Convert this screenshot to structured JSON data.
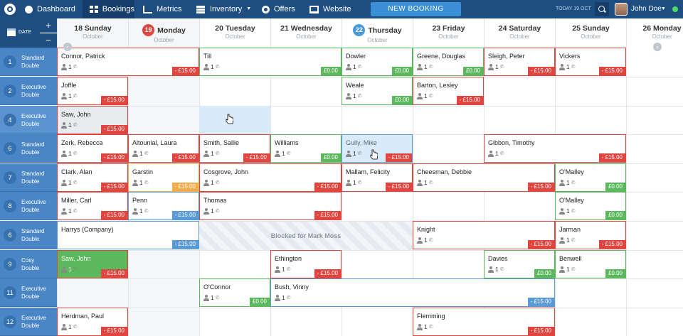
{
  "nav": {
    "items": [
      {
        "label": "Dashboard",
        "icon": "dashboard-icon"
      },
      {
        "label": "Bookings",
        "icon": "bookings-grid-icon",
        "active": true
      },
      {
        "label": "Metrics",
        "icon": "metrics-chart-icon"
      },
      {
        "label": "Inventory",
        "icon": "inventory-icon",
        "dropdown": true
      },
      {
        "label": "Offers",
        "icon": "offers-gear-icon"
      },
      {
        "label": "Website",
        "icon": "website-monitor-icon"
      }
    ],
    "new_booking": "NEW BOOKING",
    "today": "TODAY 19 OCT",
    "user": "John Doe"
  },
  "calendar": {
    "date_label": "DATE",
    "zoom_in": "+",
    "zoom_out": "−",
    "days": [
      {
        "day": "18 Sunday",
        "month": "October",
        "weekend": true
      },
      {
        "num": "19",
        "name": "Monday",
        "month": "October",
        "badge": "red"
      },
      {
        "day": "20 Tuesday",
        "month": "October"
      },
      {
        "day": "21 Wednesday",
        "month": "October"
      },
      {
        "num": "22",
        "name": "Thursday",
        "month": "October",
        "badge": "blue"
      },
      {
        "day": "23 Friday",
        "month": "October"
      },
      {
        "day": "24 Saturday",
        "month": "October"
      },
      {
        "day": "25 Sunday",
        "month": "October"
      },
      {
        "day": "26 Monday",
        "month": "October"
      }
    ]
  },
  "rooms": [
    {
      "num": "1",
      "type": "Standard",
      "sub": "Double"
    },
    {
      "num": "2",
      "type": "Executive",
      "sub": "Double"
    },
    {
      "num": "4",
      "type": "Executive",
      "sub": "Double"
    },
    {
      "num": "6",
      "type": "Standard",
      "sub": "Double"
    },
    {
      "num": "7",
      "type": "Standard",
      "sub": "Double"
    },
    {
      "num": "8",
      "type": "Executive",
      "sub": "Double"
    },
    {
      "num": "6",
      "type": "Standard",
      "sub": "Double"
    },
    {
      "num": "9",
      "type": "Cosy",
      "sub": "Double"
    },
    {
      "num": "11",
      "type": "Executive",
      "sub": "Double"
    },
    {
      "num": "12",
      "type": "Executive",
      "sub": "Double"
    }
  ],
  "bookings": [
    {
      "name": "Connor, Patrick",
      "guests": "1",
      "price": "- £15.00"
    },
    {
      "name": "Till",
      "guests": "1",
      "price": "£0.00"
    },
    {
      "name": "Dowler",
      "guests": "1",
      "price": "£0.00"
    },
    {
      "name": "Greene, Douglas",
      "guests": "1",
      "price": "£0.00"
    },
    {
      "name": "Sleigh, Peter",
      "guests": "1",
      "price": "- £15.00"
    },
    {
      "name": "Vickers",
      "guests": "1",
      "price": "- £15.00"
    },
    {
      "name": "Joffle",
      "guests": "1",
      "price": "- £15.00"
    },
    {
      "name": "Weale",
      "guests": "1",
      "price": "£0.00"
    },
    {
      "name": "Barton, Lesley",
      "guests": "1",
      "price": "- £15.00"
    },
    {
      "name": "Saw, John",
      "guests": "1",
      "price": "- £15.00"
    },
    {
      "name": "Zerk, Rebecca",
      "guests": "1",
      "price": "- £15.00"
    },
    {
      "name": "Altounial, Laura",
      "guests": "1",
      "price": "- £15.00"
    },
    {
      "name": "Smith, Sallie",
      "guests": "1",
      "price": "- £15.00"
    },
    {
      "name": "Williams",
      "guests": "1",
      "price": "£0.00"
    },
    {
      "name": "Gully, Mike",
      "guests": "1",
      "price": "- £15.00"
    },
    {
      "name": "Gibbon, Timothy",
      "guests": "1",
      "price": "- £15.00"
    },
    {
      "name": "Clark, Alan",
      "guests": "1",
      "price": "- £15.00"
    },
    {
      "name": "Garstin",
      "guests": "1",
      "price": "- £15.00"
    },
    {
      "name": "Cosgrove, John",
      "guests": "1",
      "price": "- £15.00"
    },
    {
      "name": "Mallam, Felicity",
      "guests": "1",
      "price": "- £15.00"
    },
    {
      "name": "Cheesman, Debbie",
      "guests": "1",
      "price": "- £15.00"
    },
    {
      "name": "O'Malley",
      "guests": "1",
      "price": "£0.00"
    },
    {
      "name": "Miller, Carl",
      "guests": "1",
      "price": "- £15.00"
    },
    {
      "name": "Penn",
      "guests": "1",
      "price": "- £15.00"
    },
    {
      "name": "Thomas",
      "guests": "1",
      "price": "- £15.00"
    },
    {
      "name": "O'Malley",
      "guests": "1",
      "price": "£0.00"
    },
    {
      "name": "Harrys (Company)",
      "guests": "1",
      "price": "- £15.00"
    },
    {
      "name": "Knight",
      "guests": "1",
      "price": "- £15.00"
    },
    {
      "name": "Jarman",
      "guests": "1",
      "price": "- £15.00"
    },
    {
      "name": "Saw, John",
      "guests": "1",
      "price": "- £15.00"
    },
    {
      "name": "Ethington",
      "guests": "1",
      "price": "- £15.00"
    },
    {
      "name": "Davies",
      "guests": "1",
      "price": "£0.00"
    },
    {
      "name": "Benwell",
      "guests": "1",
      "price": "£0.00"
    },
    {
      "name": "O'Connor",
      "guests": "1",
      "price": "£0.00"
    },
    {
      "name": "Bush, Vinny",
      "guests": "1",
      "price": "- £15.00"
    },
    {
      "name": "Herdman, Paul",
      "guests": "1",
      "price": "- £15.00"
    },
    {
      "name": "Flemming",
      "guests": "1",
      "price": "- £15.00"
    }
  ],
  "blocked_label": "Blocked for Mark Moss"
}
